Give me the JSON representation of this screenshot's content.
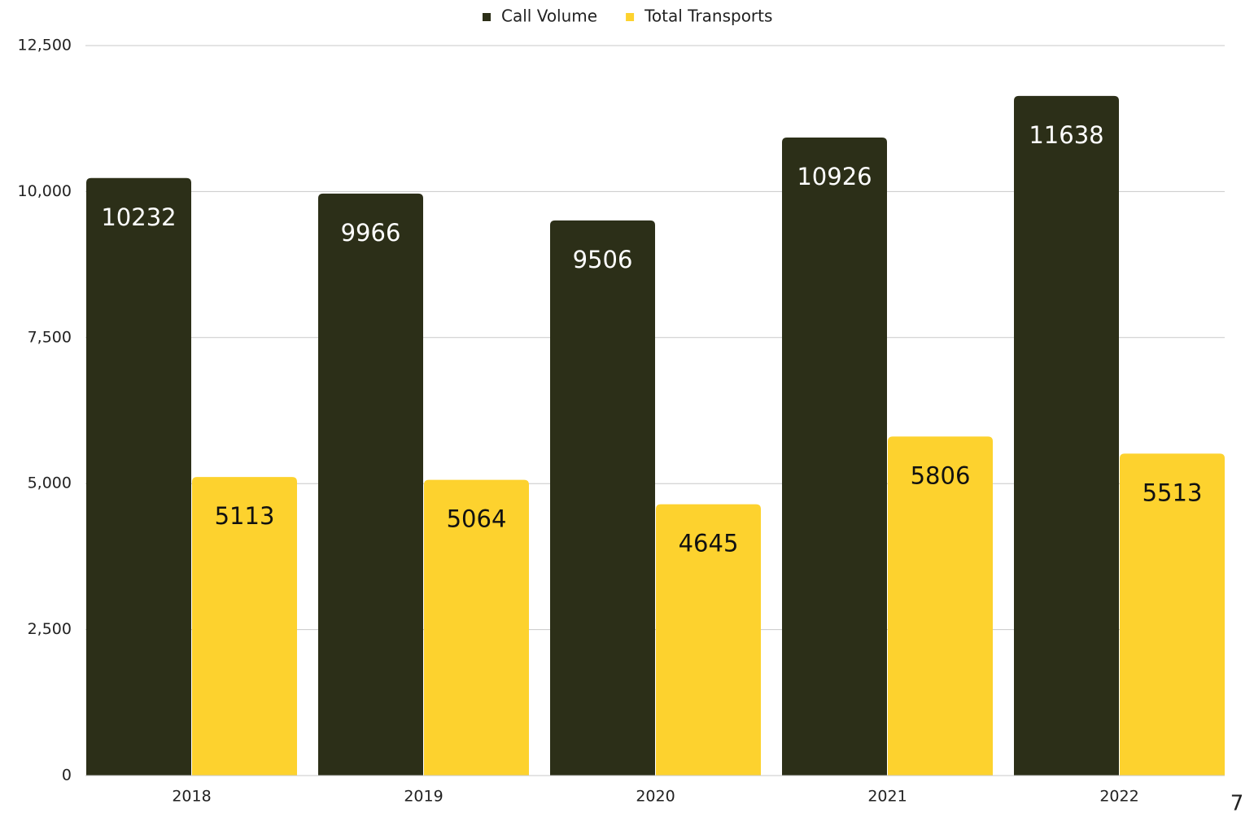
{
  "chart_data": {
    "type": "bar",
    "categories": [
      "2018",
      "2019",
      "2020",
      "2021",
      "2022"
    ],
    "series": [
      {
        "name": "Call Volume",
        "color": "#2c2f18",
        "values": [
          10232,
          9966,
          9506,
          10926,
          11638
        ]
      },
      {
        "name": "Total Transports",
        "color": "#fdd22e",
        "values": [
          5113,
          5064,
          4645,
          5806,
          5513
        ]
      }
    ],
    "ylim": [
      0,
      12500
    ],
    "yticks": [
      0,
      {
        "value": 2500,
        "label": "2,500"
      },
      {
        "value": 5000,
        "label": "5,000"
      },
      {
        "value": 7500,
        "label": "7,500"
      },
      {
        "value": 10000,
        "label": "10,000"
      },
      {
        "value": 12500,
        "label": "12,500"
      }
    ],
    "grid": true,
    "legend": "top"
  },
  "page_number": "7"
}
